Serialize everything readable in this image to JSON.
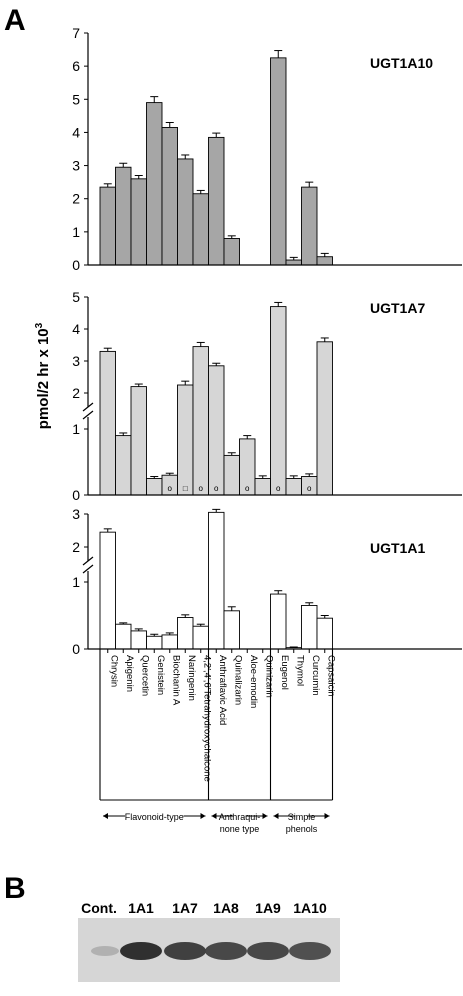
{
  "panel_labels": {
    "a": "A",
    "b": "B"
  },
  "shared_axis_label": "pmol/2 hr x 10",
  "shared_axis_label_sup": "3",
  "categories": [
    "Chrysin",
    "Apigenin",
    "Quercetin",
    "Genistein",
    "Biochanin A",
    "Naringenin",
    "4,2′,4′,6′Tetrahydroxychalcone",
    "Anthraflavic Acid",
    "Quinalizarin",
    "Aloe-emodin",
    "Quinizarin",
    "Eugenol",
    "Thymol",
    "Curcumin",
    "Capsaicin"
  ],
  "groups": [
    {
      "label": "Flavonoid-type"
    },
    {
      "label": "Anthraqui-\nnone type"
    },
    {
      "label": "Simple\nphenols"
    }
  ],
  "chart_data": [
    {
      "type": "bar",
      "title": "UGT1A10",
      "ylabel": "pmol/2 hr x 10³",
      "ylim": [
        0,
        7
      ],
      "yticks": [
        "0",
        "1",
        "2",
        "3",
        "4",
        "5",
        "6",
        "7"
      ],
      "categories": [
        "Chrysin",
        "Apigenin",
        "Quercetin",
        "Genistein",
        "Biochanin A",
        "Naringenin",
        "4,2′,4′,6′Tetrahydroxychalcone",
        "Anthraflavic Acid",
        "Quinalizarin",
        "Aloe-emodin",
        "Quinizarin",
        "Eugenol",
        "Thymol",
        "Curcumin",
        "Capsaicin"
      ],
      "values": [
        2.35,
        2.95,
        2.6,
        4.9,
        4.15,
        3.2,
        2.15,
        3.85,
        0.8,
        null,
        null,
        6.25,
        0.15,
        2.35,
        0.25
      ],
      "errors": [
        0.1,
        0.12,
        0.1,
        0.18,
        0.15,
        0.12,
        0.1,
        0.13,
        0.08,
        null,
        null,
        0.22,
        0.08,
        0.15,
        0.1
      ],
      "bar_color": "#a6a6a6"
    },
    {
      "type": "bar",
      "title": "UGT1A7",
      "ylabel": "pmol/2 hr x 10³",
      "y_axis_break": true,
      "yticks": [
        "0",
        "1",
        "2",
        "3",
        "4",
        "5"
      ],
      "categories": [
        "Chrysin",
        "Apigenin",
        "Quercetin",
        "Genistein",
        "Biochanin A",
        "Naringenin",
        "4,2′,4′,6′Tetrahydroxychalcone",
        "Anthraflavic Acid",
        "Quinalizarin",
        "Aloe-emodin",
        "Quinizarin",
        "Eugenol",
        "Thymol",
        "Curcumin",
        "Capsaicin"
      ],
      "values": [
        3.3,
        0.9,
        2.2,
        0.25,
        0.3,
        2.25,
        3.45,
        2.85,
        0.6,
        0.85,
        0.25,
        4.7,
        0.25,
        0.28,
        3.6
      ],
      "errors": [
        0.1,
        0.04,
        0.08,
        0.03,
        0.03,
        0.12,
        0.13,
        0.08,
        0.04,
        0.05,
        0.04,
        0.13,
        0.04,
        0.04,
        0.12
      ],
      "markers": [
        "",
        "",
        "",
        "",
        "o",
        "□",
        "o",
        "o",
        "",
        "o",
        "",
        "o",
        "",
        "o",
        ""
      ],
      "bar_color": "#d6d6d6"
    },
    {
      "type": "bar",
      "title": "UGT1A1",
      "ylabel": "pmol/2 hr x 10³",
      "y_axis_break": true,
      "yticks": [
        "0",
        "1",
        "2",
        "3"
      ],
      "categories": [
        "Chrysin",
        "Apigenin",
        "Quercetin",
        "Genistein",
        "Biochanin A",
        "Naringenin",
        "4,2′,4′,6′Tetrahydroxychalcone",
        "Anthraflavic Acid",
        "Quinalizarin",
        "Aloe-emodin",
        "Quinizarin",
        "Eugenol",
        "Thymol",
        "Curcumin",
        "Capsaicin"
      ],
      "values": [
        2.45,
        0.37,
        0.27,
        0.19,
        0.21,
        0.47,
        0.34,
        3.05,
        0.57,
        null,
        null,
        0.82,
        0.02,
        0.65,
        0.46
      ],
      "errors": [
        0.1,
        0.02,
        0.03,
        0.03,
        0.03,
        0.04,
        0.03,
        0.09,
        0.06,
        null,
        null,
        0.05,
        0.01,
        0.04,
        0.04
      ],
      "bar_color": "#ffffff"
    }
  ],
  "gel": {
    "lane_labels": [
      "Cont.",
      "1A1",
      "1A7",
      "1A8",
      "1A9",
      "1A10"
    ],
    "band_intensity": [
      0.15,
      0.95,
      0.85,
      0.8,
      0.8,
      0.75
    ]
  }
}
